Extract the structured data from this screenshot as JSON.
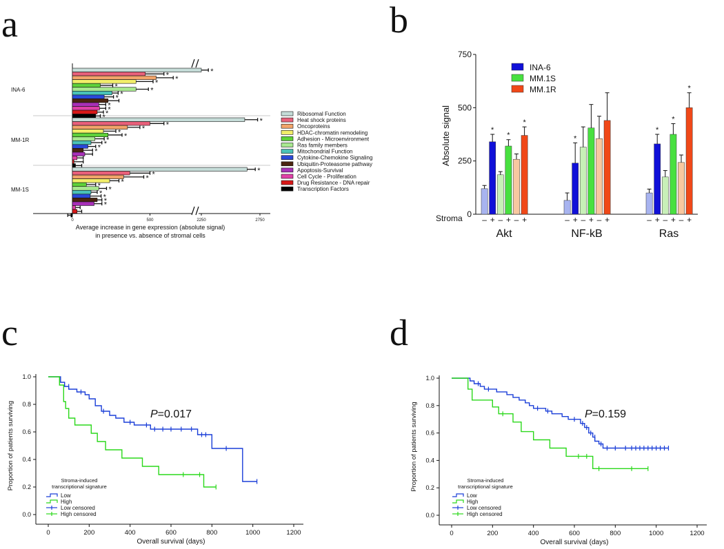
{
  "panel_labels": {
    "a": "a",
    "b": "b",
    "c": "c",
    "d": "d"
  },
  "chart_data": [
    {
      "id": "a",
      "type": "bar",
      "orientation": "horizontal",
      "groups": [
        "INA-6",
        "MM-1R",
        "MM-1S"
      ],
      "categories": [
        "Ribosomal Function",
        "Heat shock proteins",
        "Oncoproteins",
        "HDAC-chromatin remodeling",
        "Adhesion - Microenvironment",
        "Ras family members",
        "Mitochondrial Function",
        "Cytokine-Chemokine Signaling",
        "Ubiquitin-Proteasome pathway",
        "Apoptosis-Survival",
        "Cell Cycle - Proliferation",
        "Drug Resistance - DNA repair",
        "Transcription Factors"
      ],
      "colors": [
        "#c5dcd8",
        "#e8607a",
        "#f2a46a",
        "#f2ee6a",
        "#5fd23a",
        "#a8e890",
        "#4ac2b8",
        "#2a48d8",
        "#4a2410",
        "#a830b8",
        "#e040a8",
        "#d81818",
        "#000000"
      ],
      "series": [
        {
          "name": "INA-6",
          "values": [
            2250,
            470,
            540,
            410,
            180,
            410,
            255,
            205,
            230,
            170,
            175,
            160,
            150
          ],
          "errors": [
            60,
            120,
            110,
            110,
            80,
            80,
            40,
            60,
            70,
            45,
            40,
            40,
            30
          ],
          "significant": [
            true,
            true,
            true,
            true,
            true,
            true,
            true,
            true,
            false,
            true,
            true,
            true,
            true
          ]
        },
        {
          "name": "MM-1R",
          "values": [
            2620,
            500,
            355,
            200,
            230,
            145,
            120,
            100,
            70,
            80,
            30,
            10,
            20
          ],
          "errors": [
            110,
            90,
            80,
            80,
            90,
            60,
            70,
            50,
            60,
            50,
            40,
            60,
            40
          ],
          "significant": [
            true,
            true,
            true,
            true,
            true,
            true,
            true,
            true,
            true,
            false,
            false,
            false,
            false
          ]
        },
        {
          "name": "MM-1S",
          "values": [
            2640,
            370,
            330,
            240,
            90,
            170,
            120,
            115,
            160,
            140,
            20,
            30,
            -10
          ],
          "errors": [
            70,
            130,
            130,
            60,
            60,
            50,
            40,
            70,
            30,
            50,
            30,
            30,
            20
          ],
          "significant": [
            true,
            true,
            true,
            true,
            true,
            true,
            true,
            true,
            true,
            true,
            false,
            false,
            false
          ]
        }
      ],
      "xticks": [
        "0",
        "500",
        "2250",
        "2750"
      ],
      "xlabel_line1": "Average increase in gene expression (absolute signal)",
      "xlabel_line2": "in presence vs. absence of stromal cells",
      "star": "*"
    },
    {
      "id": "b",
      "type": "bar",
      "categories": [
        "Akt",
        "NF-kB",
        "Ras"
      ],
      "series": [
        {
          "name": "INA-6",
          "stroma_off": [
            120,
            65,
            100
          ],
          "stroma_off_err": [
            15,
            35,
            18
          ],
          "stroma_on": [
            340,
            240,
            330
          ],
          "stroma_on_err": [
            35,
            95,
            45
          ],
          "significant": [
            true,
            true,
            true
          ]
        },
        {
          "name": "MM.1S",
          "stroma_off": [
            185,
            315,
            175
          ],
          "stroma_off_err": [
            15,
            95,
            30
          ],
          "stroma_on": [
            320,
            405,
            375
          ],
          "stroma_on_err": [
            30,
            110,
            50
          ],
          "significant": [
            true,
            false,
            true
          ]
        },
        {
          "name": "MM.1R",
          "stroma_off": [
            258,
            355,
            243
          ],
          "stroma_off_err": [
            25,
            105,
            35
          ],
          "stroma_on": [
            370,
            440,
            500
          ],
          "stroma_on_err": [
            40,
            130,
            70
          ],
          "significant": [
            true,
            false,
            true
          ]
        }
      ],
      "colors_off": [
        "#a8b4f0",
        "#c8f0b8",
        "#f8c8a0"
      ],
      "colors_on": [
        "#1010d8",
        "#48e040",
        "#f04818"
      ],
      "yticks": [
        0,
        250,
        500,
        750
      ],
      "ylim": [
        0,
        750
      ],
      "ylabel": "Absolute signal",
      "xrow_label": "Stroma",
      "tick_symbols": [
        "–",
        "+"
      ],
      "star": "*"
    },
    {
      "id": "c",
      "type": "line",
      "ylabel": "Proportion of patients surviving",
      "xlabel": "Overall survival (days)",
      "xticks": [
        0,
        200,
        400,
        600,
        800,
        1000,
        1200
      ],
      "yticks": [
        "0.0",
        "0.2",
        "0.4",
        "0.6",
        "0.8",
        "1.0"
      ],
      "xlim": [
        0,
        1200
      ],
      "ylim": [
        0,
        1
      ],
      "pvalue_label": "P",
      "pvalue": "=0.017",
      "legend_title_line1": "Stroma-induced",
      "legend_title_line2": "transcriptional signature",
      "legend_entries": [
        "Low",
        "High",
        "Low censored",
        "High censored"
      ],
      "series": [
        {
          "name": "Low",
          "color": "#1a3ed8",
          "steps": [
            [
              0,
              1.0
            ],
            [
              60,
              1.0
            ],
            [
              60,
              0.96
            ],
            [
              80,
              0.96
            ],
            [
              80,
              0.93
            ],
            [
              100,
              0.93
            ],
            [
              100,
              0.91
            ],
            [
              140,
              0.91
            ],
            [
              140,
              0.89
            ],
            [
              180,
              0.89
            ],
            [
              180,
              0.87
            ],
            [
              200,
              0.87
            ],
            [
              200,
              0.84
            ],
            [
              230,
              0.84
            ],
            [
              230,
              0.79
            ],
            [
              260,
              0.79
            ],
            [
              260,
              0.75
            ],
            [
              300,
              0.75
            ],
            [
              300,
              0.72
            ],
            [
              330,
              0.72
            ],
            [
              330,
              0.7
            ],
            [
              370,
              0.7
            ],
            [
              370,
              0.67
            ],
            [
              420,
              0.67
            ],
            [
              420,
              0.65
            ],
            [
              500,
              0.65
            ],
            [
              500,
              0.62
            ],
            [
              730,
              0.62
            ],
            [
              730,
              0.58
            ],
            [
              800,
              0.58
            ],
            [
              800,
              0.48
            ],
            [
              950,
              0.48
            ],
            [
              950,
              0.24
            ],
            [
              1020,
              0.24
            ]
          ],
          "censored": [
            [
              100,
              0.93
            ],
            [
              160,
              0.89
            ],
            [
              270,
              0.75
            ],
            [
              400,
              0.67
            ],
            [
              480,
              0.65
            ],
            [
              520,
              0.62
            ],
            [
              560,
              0.62
            ],
            [
              600,
              0.62
            ],
            [
              650,
              0.62
            ],
            [
              700,
              0.62
            ],
            [
              750,
              0.58
            ],
            [
              770,
              0.58
            ],
            [
              870,
              0.48
            ],
            [
              1020,
              0.24
            ]
          ]
        },
        {
          "name": "High",
          "color": "#2ad81a",
          "steps": [
            [
              0,
              1.0
            ],
            [
              55,
              1.0
            ],
            [
              55,
              0.94
            ],
            [
              75,
              0.94
            ],
            [
              75,
              0.82
            ],
            [
              85,
              0.82
            ],
            [
              85,
              0.77
            ],
            [
              100,
              0.77
            ],
            [
              100,
              0.7
            ],
            [
              130,
              0.7
            ],
            [
              130,
              0.65
            ],
            [
              210,
              0.65
            ],
            [
              210,
              0.59
            ],
            [
              240,
              0.59
            ],
            [
              240,
              0.53
            ],
            [
              280,
              0.53
            ],
            [
              280,
              0.47
            ],
            [
              360,
              0.47
            ],
            [
              360,
              0.41
            ],
            [
              460,
              0.41
            ],
            [
              460,
              0.35
            ],
            [
              540,
              0.35
            ],
            [
              540,
              0.29
            ],
            [
              760,
              0.29
            ],
            [
              760,
              0.2
            ],
            [
              820,
              0.2
            ]
          ],
          "censored": [
            [
              660,
              0.29
            ],
            [
              740,
              0.29
            ],
            [
              820,
              0.2
            ]
          ]
        }
      ]
    },
    {
      "id": "d",
      "type": "line",
      "ylabel": "Proportion of patients surviving",
      "xlabel": "Overall survival (days)",
      "xticks": [
        0,
        200,
        400,
        600,
        800,
        1000,
        1200
      ],
      "yticks": [
        "0.0",
        "0.2",
        "0.4",
        "0.6",
        "0.8",
        "1.0"
      ],
      "xlim": [
        0,
        1200
      ],
      "ylim": [
        0,
        1
      ],
      "pvalue_label": "P",
      "pvalue": "=0.159",
      "legend_title_line1": "Stroma-induced",
      "legend_title_line2": "transcriptional signature",
      "legend_entries": [
        "Low",
        "High",
        "Low censored",
        "High censored"
      ],
      "series": [
        {
          "name": "Low",
          "color": "#1a3ed8",
          "steps": [
            [
              0,
              1.0
            ],
            [
              90,
              1.0
            ],
            [
              90,
              0.98
            ],
            [
              110,
              0.98
            ],
            [
              110,
              0.96
            ],
            [
              140,
              0.96
            ],
            [
              140,
              0.94
            ],
            [
              160,
              0.94
            ],
            [
              160,
              0.92
            ],
            [
              220,
              0.92
            ],
            [
              220,
              0.9
            ],
            [
              270,
              0.9
            ],
            [
              270,
              0.88
            ],
            [
              300,
              0.88
            ],
            [
              300,
              0.86
            ],
            [
              330,
              0.86
            ],
            [
              330,
              0.84
            ],
            [
              360,
              0.84
            ],
            [
              360,
              0.82
            ],
            [
              380,
              0.82
            ],
            [
              380,
              0.8
            ],
            [
              400,
              0.8
            ],
            [
              400,
              0.78
            ],
            [
              460,
              0.78
            ],
            [
              460,
              0.76
            ],
            [
              490,
              0.76
            ],
            [
              490,
              0.74
            ],
            [
              540,
              0.74
            ],
            [
              540,
              0.72
            ],
            [
              570,
              0.72
            ],
            [
              570,
              0.7
            ],
            [
              630,
              0.7
            ],
            [
              630,
              0.67
            ],
            [
              650,
              0.67
            ],
            [
              650,
              0.64
            ],
            [
              670,
              0.64
            ],
            [
              670,
              0.6
            ],
            [
              690,
              0.6
            ],
            [
              690,
              0.57
            ],
            [
              700,
              0.57
            ],
            [
              700,
              0.54
            ],
            [
              720,
              0.54
            ],
            [
              720,
              0.52
            ],
            [
              740,
              0.52
            ],
            [
              740,
              0.49
            ],
            [
              1060,
              0.49
            ]
          ],
          "censored": [
            [
              130,
              0.96
            ],
            [
              180,
              0.92
            ],
            [
              420,
              0.78
            ],
            [
              470,
              0.76
            ],
            [
              600,
              0.7
            ],
            [
              640,
              0.67
            ],
            [
              660,
              0.64
            ],
            [
              680,
              0.6
            ],
            [
              700,
              0.57
            ],
            [
              730,
              0.52
            ],
            [
              760,
              0.49
            ],
            [
              800,
              0.49
            ],
            [
              850,
              0.49
            ],
            [
              880,
              0.49
            ],
            [
              900,
              0.49
            ],
            [
              920,
              0.49
            ],
            [
              940,
              0.49
            ],
            [
              960,
              0.49
            ],
            [
              980,
              0.49
            ],
            [
              1000,
              0.49
            ],
            [
              1020,
              0.49
            ],
            [
              1040,
              0.49
            ],
            [
              1060,
              0.49
            ]
          ]
        },
        {
          "name": "High",
          "color": "#2ad81a",
          "steps": [
            [
              0,
              1.0
            ],
            [
              80,
              1.0
            ],
            [
              80,
              0.92
            ],
            [
              100,
              0.92
            ],
            [
              100,
              0.84
            ],
            [
              200,
              0.84
            ],
            [
              200,
              0.79
            ],
            [
              230,
              0.79
            ],
            [
              230,
              0.74
            ],
            [
              300,
              0.74
            ],
            [
              300,
              0.68
            ],
            [
              340,
              0.68
            ],
            [
              340,
              0.61
            ],
            [
              400,
              0.61
            ],
            [
              400,
              0.55
            ],
            [
              480,
              0.55
            ],
            [
              480,
              0.49
            ],
            [
              560,
              0.49
            ],
            [
              560,
              0.43
            ],
            [
              690,
              0.43
            ],
            [
              690,
              0.34
            ],
            [
              960,
              0.34
            ]
          ],
          "censored": [
            [
              250,
              0.74
            ],
            [
              620,
              0.43
            ],
            [
              660,
              0.43
            ],
            [
              720,
              0.34
            ],
            [
              880,
              0.34
            ],
            [
              960,
              0.34
            ]
          ]
        }
      ]
    }
  ]
}
